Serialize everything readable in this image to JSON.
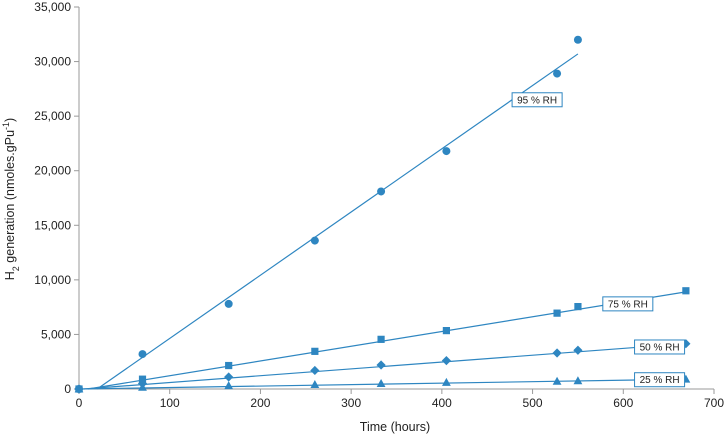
{
  "chart_data": {
    "type": "scatter",
    "xlabel": "Time (hours)",
    "ylabel": {
      "prefix": "H",
      "sub": "2",
      "middle": " generation (nmoles.gPu",
      "sup": "-1",
      "suffix": ")"
    },
    "xlim": [
      0,
      700
    ],
    "ylim": [
      0,
      35000
    ],
    "x_ticks": [
      0,
      100,
      200,
      300,
      400,
      500,
      600,
      700
    ],
    "y_ticks": [
      0,
      5000,
      10000,
      15000,
      20000,
      25000,
      30000,
      35000
    ],
    "x_tick_labels": [
      "0",
      "100",
      "200",
      "300",
      "400",
      "500",
      "600",
      "700"
    ],
    "y_tick_labels": [
      "0",
      "5,000",
      "10,000",
      "15,000",
      "20,000",
      "25,000",
      "30,000",
      "35,000"
    ],
    "grid": false,
    "legend": "none",
    "marker_color": "#2e86c1",
    "line_color": "#2e86c1",
    "series": [
      {
        "name": "95 % RH",
        "marker": "circle",
        "x": [
          0,
          70,
          165,
          260,
          333,
          405,
          527,
          550
        ],
        "y": [
          0,
          3200,
          7800,
          13600,
          18100,
          21800,
          28900,
          32000
        ],
        "trend": [
          [
            20,
            0
          ],
          [
            550,
            30700
          ]
        ],
        "annotation": {
          "x": 505,
          "y": 26500
        }
      },
      {
        "name": "75 % RH",
        "marker": "square",
        "x": [
          0,
          70,
          165,
          260,
          333,
          405,
          527,
          550,
          669
        ],
        "y": [
          0,
          900,
          2150,
          3450,
          4550,
          5350,
          6950,
          7550,
          9000
        ],
        "trend": [
          [
            10,
            0
          ],
          [
            669,
            8900
          ]
        ],
        "annotation": {
          "x": 605,
          "y": 7800
        }
      },
      {
        "name": "50 % RH",
        "marker": "diamond",
        "x": [
          0,
          70,
          165,
          260,
          333,
          405,
          527,
          550,
          669
        ],
        "y": [
          0,
          500,
          1100,
          1700,
          2200,
          2600,
          3300,
          3550,
          4150
        ],
        "trend": [
          [
            5,
            0
          ],
          [
            669,
            4150
          ]
        ],
        "annotation": {
          "x": 640,
          "y": 3850
        }
      },
      {
        "name": "25 % RH",
        "marker": "triangle",
        "x": [
          0,
          70,
          165,
          260,
          333,
          405,
          527,
          550,
          669
        ],
        "y": [
          0,
          150,
          300,
          400,
          500,
          600,
          700,
          750,
          900
        ],
        "trend": [
          [
            0,
            0
          ],
          [
            669,
            900
          ]
        ],
        "annotation": {
          "x": 640,
          "y": 850
        }
      }
    ]
  }
}
